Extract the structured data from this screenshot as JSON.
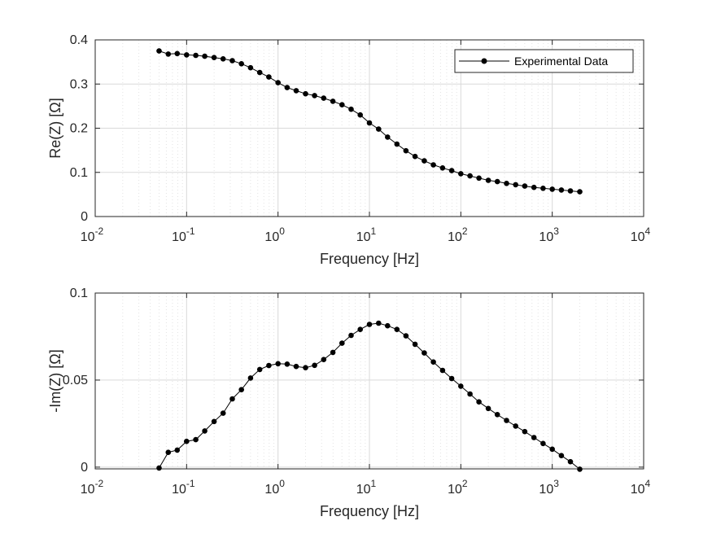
{
  "chart_data": [
    {
      "type": "line",
      "xscale": "log",
      "xlim": [
        0.01,
        10000
      ],
      "ylim": [
        0,
        0.4
      ],
      "xlabel": "Frequency [Hz]",
      "ylabel": "Re(Z) [Ω]",
      "grid": true,
      "legend": {
        "placement": "top-right",
        "entries": [
          "Experimental Data"
        ]
      },
      "xticks": [
        {
          "value": 0.01,
          "base": "10",
          "exp": "-2"
        },
        {
          "value": 0.1,
          "base": "10",
          "exp": "-1"
        },
        {
          "value": 1,
          "base": "10",
          "exp": "0"
        },
        {
          "value": 10,
          "base": "10",
          "exp": "1"
        },
        {
          "value": 100,
          "base": "10",
          "exp": "2"
        },
        {
          "value": 1000,
          "base": "10",
          "exp": "3"
        },
        {
          "value": 10000,
          "base": "10",
          "exp": "4"
        }
      ],
      "yticks": [
        {
          "value": 0,
          "label": "0"
        },
        {
          "value": 0.1,
          "label": "0.1"
        },
        {
          "value": 0.2,
          "label": "0.2"
        },
        {
          "value": 0.3,
          "label": "0.3"
        },
        {
          "value": 0.4,
          "label": "0.4"
        }
      ],
      "series": [
        {
          "name": "Experimental Data",
          "x": [
            0.05,
            0.063,
            0.079,
            0.1,
            0.126,
            0.158,
            0.2,
            0.251,
            0.316,
            0.398,
            0.501,
            0.631,
            0.794,
            1.0,
            1.26,
            1.58,
            2.0,
            2.51,
            3.16,
            3.98,
            5.01,
            6.31,
            7.94,
            10.0,
            12.6,
            15.8,
            20.0,
            25.1,
            31.6,
            39.8,
            50.1,
            63.1,
            79.4,
            100,
            126,
            158,
            200,
            251,
            316,
            398,
            501,
            631,
            794,
            1000,
            1260,
            1580,
            2000
          ],
          "y": [
            0.375,
            0.368,
            0.369,
            0.366,
            0.365,
            0.363,
            0.36,
            0.357,
            0.353,
            0.346,
            0.337,
            0.326,
            0.316,
            0.303,
            0.292,
            0.285,
            0.278,
            0.274,
            0.268,
            0.261,
            0.253,
            0.243,
            0.23,
            0.212,
            0.198,
            0.18,
            0.164,
            0.149,
            0.136,
            0.126,
            0.117,
            0.11,
            0.104,
            0.097,
            0.092,
            0.087,
            0.082,
            0.079,
            0.075,
            0.072,
            0.069,
            0.066,
            0.064,
            0.062,
            0.06,
            0.058,
            0.056
          ]
        }
      ]
    },
    {
      "type": "line",
      "xscale": "log",
      "xlim": [
        0.01,
        10000
      ],
      "ylim": [
        -0.001,
        0.1
      ],
      "xlabel": "Frequency [Hz]",
      "ylabel": "-Im(Z) [Ω]",
      "grid": true,
      "xticks": [
        {
          "value": 0.01,
          "base": "10",
          "exp": "-2"
        },
        {
          "value": 0.1,
          "base": "10",
          "exp": "-1"
        },
        {
          "value": 1,
          "base": "10",
          "exp": "0"
        },
        {
          "value": 10,
          "base": "10",
          "exp": "1"
        },
        {
          "value": 100,
          "base": "10",
          "exp": "2"
        },
        {
          "value": 1000,
          "base": "10",
          "exp": "3"
        },
        {
          "value": 10000,
          "base": "10",
          "exp": "4"
        }
      ],
      "yticks": [
        {
          "value": 0,
          "label": "0"
        },
        {
          "value": 0.05,
          "label": "0.05"
        },
        {
          "value": 0.1,
          "label": "0.1"
        }
      ],
      "series": [
        {
          "x": [
            0.05,
            0.063,
            0.079,
            0.1,
            0.126,
            0.158,
            0.2,
            0.251,
            0.316,
            0.398,
            0.501,
            0.631,
            0.794,
            1.0,
            1.26,
            1.58,
            2.0,
            2.51,
            3.16,
            3.98,
            5.01,
            6.31,
            7.94,
            10.0,
            12.6,
            15.8,
            20.0,
            25.1,
            31.6,
            39.8,
            50.1,
            63.1,
            79.4,
            100,
            126,
            158,
            200,
            251,
            316,
            398,
            501,
            631,
            794,
            1000,
            1260,
            1580,
            2000
          ],
          "y": [
            -0.0005,
            0.0085,
            0.0098,
            0.0148,
            0.0158,
            0.0208,
            0.0262,
            0.031,
            0.0392,
            0.0445,
            0.0512,
            0.0561,
            0.0584,
            0.0594,
            0.0592,
            0.0578,
            0.0571,
            0.0585,
            0.0618,
            0.0659,
            0.0712,
            0.0757,
            0.0791,
            0.082,
            0.0827,
            0.0812,
            0.0791,
            0.0754,
            0.0706,
            0.0656,
            0.0604,
            0.0556,
            0.0509,
            0.0465,
            0.042,
            0.0375,
            0.0337,
            0.0302,
            0.0268,
            0.0236,
            0.0204,
            0.017,
            0.0136,
            0.0103,
            0.0066,
            0.0031,
            -0.0012
          ]
        }
      ]
    }
  ]
}
